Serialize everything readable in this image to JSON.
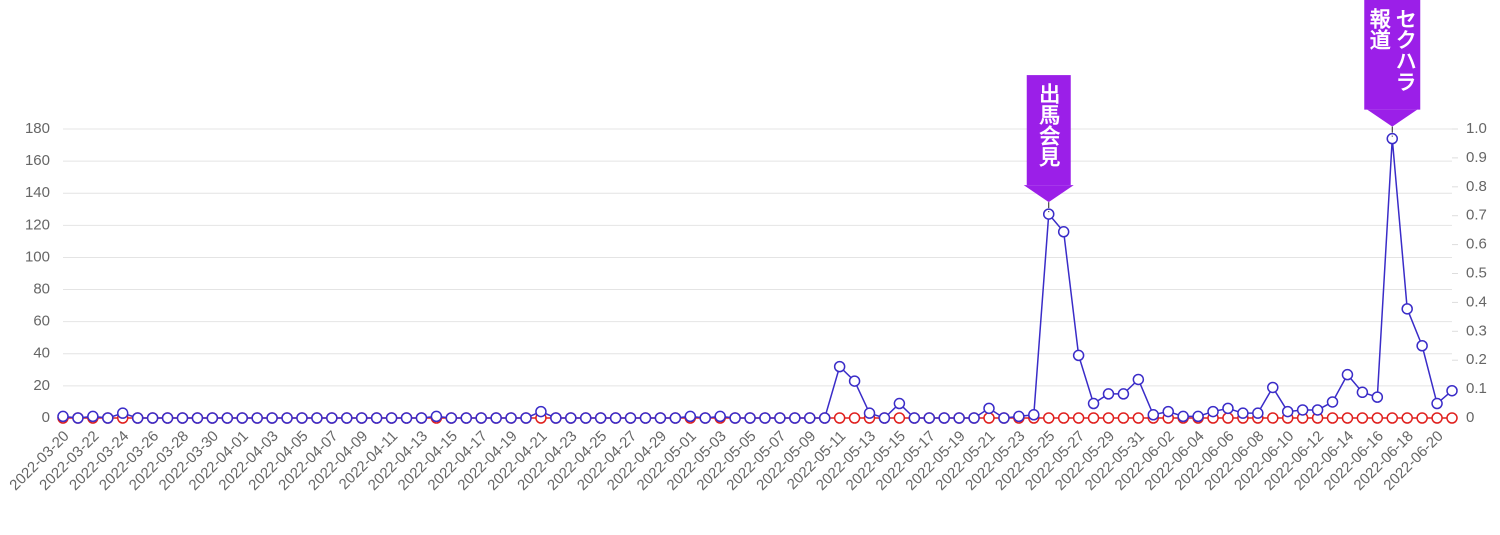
{
  "chart_data": {
    "type": "line",
    "categories": [
      "2022-03-20",
      null,
      "2022-03-22",
      null,
      "2022-03-24",
      null,
      "2022-03-26",
      null,
      "2022-03-28",
      null,
      "2022-03-30",
      null,
      "2022-04-01",
      null,
      "2022-04-03",
      null,
      "2022-04-05",
      null,
      "2022-04-07",
      null,
      "2022-04-09",
      null,
      "2022-04-11",
      null,
      "2022-04-13",
      null,
      "2022-04-15",
      null,
      "2022-04-17",
      null,
      "2022-04-19",
      null,
      "2022-04-21",
      null,
      "2022-04-23",
      null,
      "2022-04-25",
      null,
      "2022-04-27",
      null,
      "2022-04-29",
      null,
      "2022-05-01",
      null,
      "2022-05-03",
      null,
      "2022-05-05",
      null,
      "2022-05-07",
      null,
      "2022-05-09",
      null,
      "2022-05-11",
      null,
      "2022-05-13",
      null,
      "2022-05-15",
      null,
      "2022-05-17",
      null,
      "2022-05-19",
      null,
      "2022-05-21",
      null,
      "2022-05-23",
      null,
      "2022-05-25",
      null,
      "2022-05-27",
      null,
      "2022-05-29",
      null,
      "2022-05-31",
      null,
      "2022-06-02",
      null,
      "2022-06-04",
      null,
      "2022-06-06",
      null,
      "2022-06-08",
      null,
      "2022-06-10",
      null,
      "2022-06-12",
      null,
      "2022-06-14",
      null,
      "2022-06-16",
      null,
      "2022-06-18",
      null,
      "2022-06-20",
      null
    ],
    "series": [
      {
        "color": "#e0201e",
        "axis": "y2",
        "values": [
          0,
          0,
          0,
          0,
          0,
          0,
          0,
          0,
          0,
          0,
          0,
          0,
          0,
          0,
          0,
          0,
          0,
          0,
          0,
          0,
          0,
          0,
          0,
          0,
          0,
          0,
          0,
          0,
          0,
          0,
          0,
          0,
          0,
          0,
          0,
          0,
          0,
          0,
          0,
          0,
          0,
          0,
          0,
          0,
          0,
          0,
          0,
          0,
          0,
          0,
          0,
          0,
          0,
          0,
          0,
          0,
          0,
          0,
          0,
          0,
          0,
          0,
          0,
          0,
          0,
          0,
          0,
          0,
          0,
          0,
          0,
          0,
          0,
          0,
          0,
          0,
          0,
          0,
          0,
          0,
          0,
          0,
          0,
          0,
          0,
          0,
          0,
          0,
          0,
          0,
          0,
          0,
          0,
          0
        ]
      },
      {
        "color": "#3a2cc8",
        "values": [
          1,
          0,
          1,
          0,
          3,
          0,
          0,
          0,
          0,
          0,
          0,
          0,
          0,
          0,
          0,
          0,
          0,
          0,
          0,
          0,
          0,
          0,
          0,
          0,
          0,
          1,
          0,
          0,
          0,
          0,
          0,
          0,
          4,
          0,
          0,
          0,
          0,
          0,
          0,
          0,
          0,
          0,
          1,
          0,
          1,
          0,
          0,
          0,
          0,
          0,
          0,
          0,
          32,
          23,
          3,
          0,
          9,
          0,
          0,
          0,
          0,
          0,
          6,
          0,
          1,
          2,
          127,
          116,
          39,
          9,
          15,
          15,
          24,
          2,
          4,
          1,
          1,
          4,
          6,
          3,
          3,
          19,
          4,
          5,
          5,
          10,
          27,
          16,
          13,
          174,
          68,
          45,
          9,
          17
        ]
      }
    ],
    "ylim": [
      0,
      180
    ],
    "yticks": [
      0,
      20,
      40,
      60,
      80,
      100,
      120,
      140,
      160,
      180
    ],
    "y2lim": [
      0,
      1
    ],
    "y2ticks": [
      0,
      0.1,
      0.2,
      0.3,
      0.4,
      0.5,
      0.6,
      0.7,
      0.8,
      0.9,
      {
        "value": 1,
        "label": "1.0"
      }
    ],
    "grid": true,
    "annotations": [
      {
        "lines": [
          "出馬会見"
        ],
        "point": 66,
        "color": "#9b1fe8"
      },
      {
        "lines": [
          "セクハラ",
          "報道"
        ],
        "point": 89,
        "color": "#9b1fe8"
      }
    ]
  }
}
